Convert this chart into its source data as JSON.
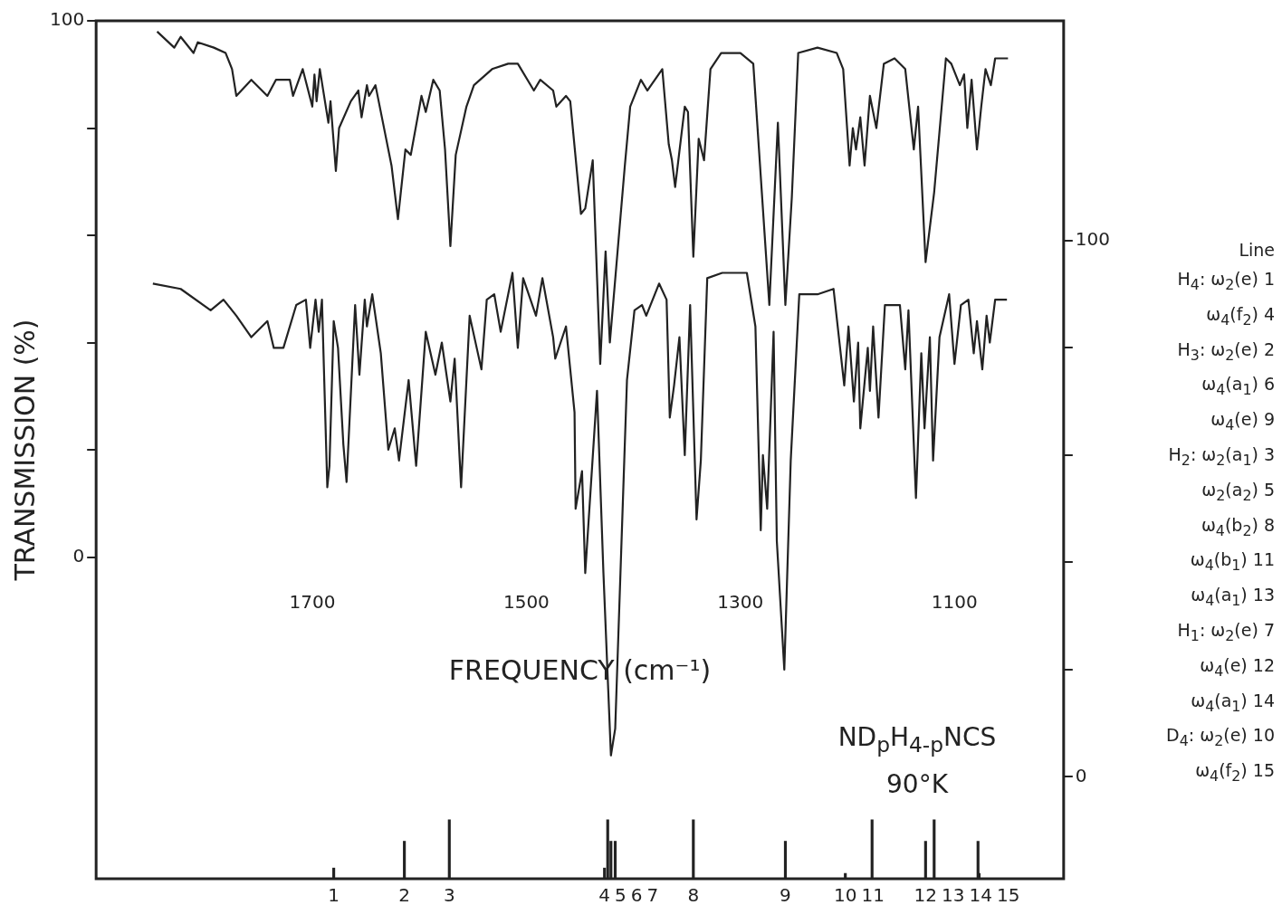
{
  "chart_data": {
    "type": "line",
    "xlabel": "FREQUENCY (cm⁻¹)",
    "ylabel": "TRANSMISSION (%)",
    "xlim": [
      1902,
      998
    ],
    "xticks": [
      1700,
      1500,
      1300,
      1100
    ],
    "ylim": [
      -60,
      100
    ],
    "yticks": [
      {
        "value": 0,
        "label": "0"
      },
      {
        "value": 20,
        "label": null
      },
      {
        "value": 40,
        "label": null
      },
      {
        "value": 60,
        "label": null
      },
      {
        "value": 80,
        "label": null
      },
      {
        "value": 100,
        "label": "100"
      }
    ],
    "y2lim": [
      -19,
      141
    ],
    "y2ticks": [
      {
        "value": 0,
        "label": "0"
      },
      {
        "value": 20,
        "label": null
      },
      {
        "value": 40,
        "label": null
      },
      {
        "value": 60,
        "label": null
      },
      {
        "value": 80,
        "label": null
      },
      {
        "value": 100,
        "label": "100"
      }
    ],
    "grid": false,
    "legend": false,
    "marker": "none",
    "series": [
      {
        "color": "#222222",
        "x": [
          1845,
          1829,
          1823,
          1811,
          1807,
          1792,
          1781,
          1775,
          1771,
          1757,
          1742,
          1734,
          1721,
          1718,
          1709,
          1700,
          1698,
          1696,
          1693,
          1685,
          1683,
          1678,
          1675,
          1664,
          1657,
          1654,
          1649,
          1647,
          1641,
          1635,
          1626,
          1620,
          1613,
          1608,
          1598,
          1594,
          1587,
          1581,
          1576,
          1571,
          1566,
          1556,
          1549,
          1532,
          1517,
          1508,
          1493,
          1487,
          1475,
          1472,
          1463,
          1459,
          1449,
          1445,
          1438,
          1431,
          1426,
          1422,
          1408,
          1403,
          1393,
          1387,
          1373,
          1367,
          1364,
          1361,
          1352,
          1349,
          1344,
          1339,
          1334,
          1328,
          1318,
          1300,
          1288,
          1280,
          1273,
          1265,
          1258,
          1252,
          1246,
          1228,
          1210,
          1204,
          1198,
          1195,
          1192,
          1188,
          1184,
          1179,
          1173,
          1166,
          1156,
          1146,
          1138,
          1134,
          1127,
          1119,
          1108,
          1103,
          1095,
          1091,
          1088,
          1084,
          1079,
          1075,
          1071,
          1066,
          1062,
          1050
        ],
        "values": [
          98,
          95,
          97,
          94,
          96,
          95,
          94,
          91,
          86,
          89,
          86,
          89,
          89,
          86,
          91,
          84,
          90,
          85,
          91,
          81,
          85,
          72,
          80,
          85,
          87,
          82,
          88,
          86,
          88,
          82,
          73,
          63,
          76,
          75,
          86,
          83,
          89,
          87,
          76,
          58,
          75,
          84,
          88,
          91,
          92,
          92,
          87,
          89,
          87,
          84,
          86,
          85,
          64,
          65,
          74,
          36,
          57,
          40,
          73,
          84,
          89,
          87,
          91,
          77,
          74,
          69,
          84,
          83,
          56,
          78,
          74,
          91,
          94,
          94,
          92,
          68,
          47,
          81,
          47,
          67,
          94,
          95,
          94,
          91,
          73,
          80,
          76,
          82,
          73,
          86,
          80,
          92,
          93,
          91,
          76,
          84,
          55,
          68,
          93,
          92,
          88,
          90,
          80,
          89,
          76,
          84,
          91,
          88,
          93,
          93
        ]
      },
      {
        "color": "#222222",
        "axis": "y2",
        "x": [
          1849,
          1823,
          1795,
          1783,
          1771,
          1757,
          1742,
          1736,
          1727,
          1715,
          1706,
          1702,
          1697,
          1694,
          1691,
          1686,
          1684,
          1680,
          1676,
          1671,
          1668,
          1660,
          1656,
          1651,
          1649,
          1644,
          1636,
          1629,
          1623,
          1619,
          1610,
          1603,
          1594,
          1585,
          1579,
          1571,
          1567,
          1561,
          1553,
          1542,
          1537,
          1530,
          1524,
          1513,
          1508,
          1503,
          1491,
          1485,
          1475,
          1473,
          1463,
          1459,
          1455,
          1454,
          1448,
          1445,
          1434,
          1428,
          1421,
          1417,
          1406,
          1399,
          1392,
          1388,
          1376,
          1369,
          1366,
          1362,
          1357,
          1352,
          1347,
          1341,
          1337,
          1331,
          1317,
          1294,
          1286,
          1281,
          1279,
          1275,
          1269,
          1266,
          1259,
          1253,
          1245,
          1228,
          1213,
          1203,
          1199,
          1194,
          1190,
          1188,
          1181,
          1179,
          1176,
          1171,
          1165,
          1151,
          1146,
          1143,
          1136,
          1131,
          1128,
          1123,
          1120,
          1114,
          1105,
          1100,
          1094,
          1087,
          1082,
          1079,
          1074,
          1070,
          1067,
          1062,
          1051
        ],
        "values": [
          92,
          91,
          87,
          89,
          86,
          82,
          85,
          80,
          80,
          88,
          89,
          80,
          89,
          83,
          89,
          54,
          58,
          85,
          80,
          62,
          55,
          88,
          75,
          89,
          84,
          90,
          79,
          61,
          65,
          59,
          74,
          58,
          83,
          75,
          81,
          70,
          78,
          54,
          86,
          76,
          89,
          90,
          83,
          94,
          80,
          93,
          86,
          93,
          82,
          78,
          84,
          76,
          68,
          50,
          57,
          38,
          72,
          38,
          4,
          9,
          74,
          87,
          88,
          86,
          92,
          89,
          67,
          73,
          82,
          60,
          88,
          48,
          59,
          93,
          94,
          94,
          84,
          46,
          60,
          50,
          83,
          44,
          20,
          59,
          90,
          90,
          91,
          73,
          84,
          70,
          81,
          65,
          80,
          72,
          84,
          67,
          88,
          88,
          76,
          87,
          52,
          79,
          65,
          82,
          59,
          82,
          90,
          77,
          88,
          89,
          79,
          85,
          76,
          86,
          81,
          89,
          89
        ]
      },
      {
        "type": "bar",
        "color": "#222222",
        "x": [
          1680,
          1614,
          1572,
          1427,
          1424,
          1421,
          1417,
          1344,
          1258,
          1202,
          1177,
          1127,
          1119,
          1078,
          1077
        ],
        "base": [
          -60,
          -60,
          -60,
          -60,
          -60,
          -60,
          -60,
          -60,
          -60,
          -60,
          -60,
          -60,
          -60,
          -60,
          -60
        ],
        "values": [
          2,
          7,
          11,
          2,
          11,
          7,
          7,
          11,
          7,
          1,
          11,
          7,
          11,
          7,
          1
        ]
      }
    ],
    "annotations": [
      {
        "text": "1",
        "x": 1680,
        "y": -60
      },
      {
        "text": "2",
        "x": 1614,
        "y": -60
      },
      {
        "text": "3",
        "x": 1572,
        "y": -60
      },
      {
        "text": "4",
        "x": 1427,
        "y": -60
      },
      {
        "text": "5",
        "x": 1424,
        "y": -60
      },
      {
        "text": "6",
        "x": 1421,
        "y": -60
      },
      {
        "text": "7",
        "x": 1417,
        "y": -60
      },
      {
        "text": "8",
        "x": 1344,
        "y": -60
      },
      {
        "text": "9",
        "x": 1258,
        "y": -60
      },
      {
        "text": "10",
        "x": 1202,
        "y": -60
      },
      {
        "text": "11",
        "x": 1177,
        "y": -60
      },
      {
        "text": "12",
        "x": 1127,
        "y": -60
      },
      {
        "text": "13",
        "x": 1119,
        "y": -60
      },
      {
        "text": "14",
        "x": 1078,
        "y": -60
      },
      {
        "text": "15",
        "x": 1077,
        "y": -60
      },
      "ND$_{p}$H$_{4-p}$NCS",
      "90°K",
      "Line",
      "H$_{4}$: ω$_{2}$(e) 1",
      "ω$_{4}$(f$_{2}$) 4",
      "H$_{3}$: ω$_{2}$(e) 2",
      "ω$_{4}$(a$_{1}$) 6",
      "ω$_{4}$(e) 9",
      "H$_{2}$: ω$_{2}$(a$_{1}$) 3",
      "ω$_{2}$(a$_{2}$) 5",
      "ω$_{4}$(b$_{2}$) 8",
      "ω$_{4}$(b$_{1}$) 11",
      "ω$_{4}$(a$_{1}$) 13",
      "H$_{1}$: ω$_{2}$(e) 7",
      "ω$_{4}$(e) 12",
      "ω$_{4}$(a$_{1}$) 14",
      "D$_{4}$: ω$_{2}$(e) 10",
      "ω$_{4}$(f$_{2}$) 15"
    ]
  }
}
